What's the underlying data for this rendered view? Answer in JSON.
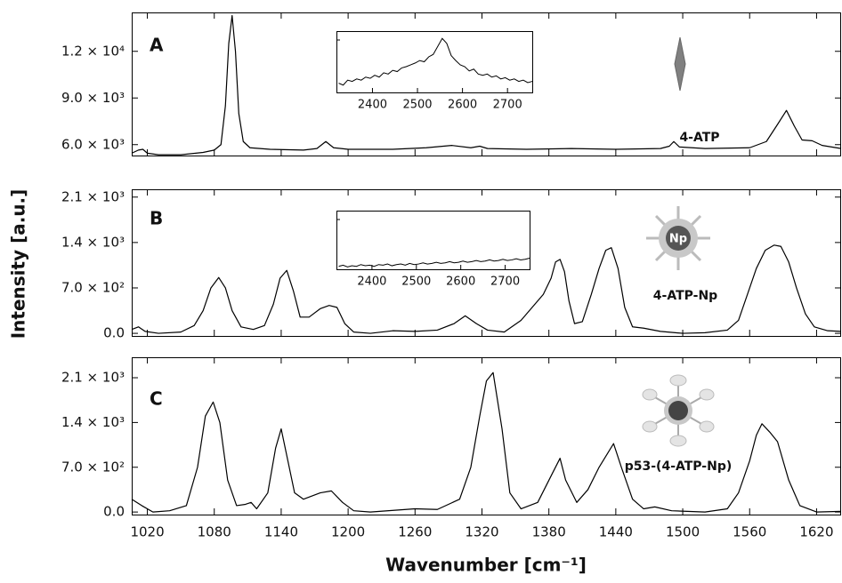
{
  "xlabel": "Wavenumber [cm⁻¹]",
  "ylabel": "Intensity [a.u.]",
  "chart_data": [
    {
      "type": "line",
      "label": "A",
      "annotation": "4-ATP",
      "color": "#000000",
      "x": [
        1006,
        1012,
        1016,
        1020,
        1030,
        1050,
        1070,
        1080,
        1086,
        1090,
        1093,
        1096,
        1099,
        1102,
        1106,
        1112,
        1130,
        1160,
        1172,
        1180,
        1187,
        1200,
        1240,
        1270,
        1293,
        1310,
        1318,
        1325,
        1360,
        1400,
        1440,
        1480,
        1488,
        1492,
        1497,
        1520,
        1560,
        1575,
        1585,
        1593,
        1600,
        1607,
        1616,
        1625,
        1642
      ],
      "values": [
        5450,
        5650,
        5700,
        5450,
        5350,
        5350,
        5500,
        5650,
        6000,
        8500,
        12500,
        14300,
        12000,
        8000,
        6200,
        5800,
        5700,
        5650,
        5750,
        6200,
        5800,
        5700,
        5700,
        5800,
        5950,
        5800,
        5900,
        5750,
        5700,
        5750,
        5700,
        5750,
        5900,
        6200,
        5850,
        5750,
        5800,
        6200,
        7300,
        8200,
        7200,
        6300,
        6250,
        5950,
        5750
      ],
      "xlim": [
        1006,
        1642
      ],
      "xticks": [
        1020,
        1080,
        1140,
        1200,
        1260,
        1320,
        1380,
        1440,
        1500,
        1560,
        1620
      ],
      "ylim": [
        5300,
        14500
      ],
      "yticks": [
        {
          "value": 6000,
          "label": "6.0 × 10³"
        },
        {
          "value": 9000,
          "label": "9.0 × 10³"
        },
        {
          "value": 12000,
          "label": "1.2 × 10⁴"
        }
      ],
      "inset": {
        "type": "line",
        "color": "#000000",
        "x": [
          2325,
          2335,
          2345,
          2355,
          2365,
          2375,
          2385,
          2395,
          2405,
          2415,
          2425,
          2435,
          2445,
          2455,
          2465,
          2475,
          2485,
          2495,
          2505,
          2515,
          2525,
          2535,
          2545,
          2555,
          2565,
          2575,
          2585,
          2595,
          2605,
          2615,
          2625,
          2635,
          2645,
          2655,
          2665,
          2675,
          2685,
          2695,
          2705,
          2715,
          2725,
          2735,
          2745,
          2755
        ],
        "values": [
          15,
          12,
          20,
          18,
          22,
          20,
          25,
          23,
          28,
          25,
          32,
          30,
          36,
          34,
          40,
          42,
          45,
          48,
          52,
          50,
          58,
          62,
          75,
          88,
          80,
          60,
          52,
          45,
          42,
          35,
          38,
          30,
          28,
          30,
          25,
          27,
          22,
          24,
          20,
          22,
          18,
          20,
          16,
          18
        ],
        "xlim": [
          2320,
          2755
        ],
        "xticks": [
          2400,
          2500,
          2600,
          2700
        ],
        "ylim": [
          0,
          100
        ]
      }
    },
    {
      "type": "line",
      "label": "B",
      "annotation": "4-ATP-Np",
      "icon_label": "Np",
      "color": "#000000",
      "x": [
        1006,
        1012,
        1018,
        1030,
        1050,
        1062,
        1070,
        1077,
        1084,
        1090,
        1096,
        1104,
        1115,
        1125,
        1133,
        1139,
        1145,
        1151,
        1157,
        1165,
        1175,
        1183,
        1190,
        1197,
        1205,
        1220,
        1240,
        1260,
        1280,
        1295,
        1305,
        1315,
        1325,
        1340,
        1355,
        1365,
        1375,
        1382,
        1386,
        1390,
        1394,
        1398,
        1403,
        1410,
        1418,
        1425,
        1431,
        1436,
        1442,
        1448,
        1455,
        1465,
        1480,
        1500,
        1520,
        1540,
        1550,
        1558,
        1566,
        1574,
        1582,
        1588,
        1595,
        1602,
        1610,
        1618,
        1630,
        1642
      ],
      "values": [
        60,
        100,
        30,
        0,
        20,
        120,
        350,
        700,
        860,
        700,
        350,
        100,
        60,
        120,
        450,
        850,
        970,
        650,
        250,
        250,
        380,
        430,
        400,
        150,
        20,
        0,
        40,
        30,
        50,
        150,
        270,
        150,
        50,
        20,
        200,
        400,
        600,
        850,
        1100,
        1140,
        950,
        500,
        150,
        180,
        600,
        1000,
        1280,
        1320,
        1000,
        400,
        100,
        80,
        30,
        0,
        10,
        50,
        200,
        600,
        1000,
        1280,
        1360,
        1340,
        1100,
        700,
        300,
        100,
        40,
        30
      ],
      "xlim": [
        1006,
        1642
      ],
      "xticks": [
        1020,
        1080,
        1140,
        1200,
        1260,
        1320,
        1380,
        1440,
        1500,
        1560,
        1620
      ],
      "ylim": [
        -40,
        2220
      ],
      "yticks": [
        {
          "value": 0,
          "label": "0.0"
        },
        {
          "value": 700,
          "label": "7.0 × 10²"
        },
        {
          "value": 1400,
          "label": "1.4 × 10³"
        },
        {
          "value": 2100,
          "label": "2.1 × 10³"
        }
      ],
      "inset": {
        "type": "line",
        "color": "#000000",
        "x": [
          2325,
          2335,
          2345,
          2355,
          2365,
          2375,
          2385,
          2395,
          2405,
          2415,
          2425,
          2435,
          2445,
          2455,
          2465,
          2475,
          2485,
          2495,
          2505,
          2515,
          2525,
          2535,
          2545,
          2555,
          2565,
          2575,
          2585,
          2595,
          2605,
          2615,
          2625,
          2635,
          2645,
          2655,
          2665,
          2675,
          2685,
          2695,
          2705,
          2715,
          2725,
          2735,
          2745,
          2755
        ],
        "values": [
          5,
          7,
          4,
          6,
          5,
          8,
          6,
          7,
          5,
          8,
          7,
          9,
          6,
          8,
          9,
          7,
          10,
          8,
          9,
          11,
          9,
          10,
          12,
          10,
          11,
          13,
          11,
          12,
          14,
          12,
          13,
          15,
          13,
          14,
          16,
          14,
          15,
          17,
          15,
          16,
          18,
          16,
          17,
          19
        ],
        "xlim": [
          2320,
          2755
        ],
        "xticks": [
          2400,
          2500,
          2600,
          2700
        ],
        "ylim": [
          0,
          100
        ]
      }
    },
    {
      "type": "line",
      "label": "C",
      "annotation": "p53-(4-ATP-Np)",
      "color": "#000000",
      "x": [
        1006,
        1015,
        1025,
        1040,
        1055,
        1065,
        1072,
        1079,
        1085,
        1092,
        1100,
        1108,
        1113,
        1118,
        1128,
        1135,
        1140,
        1146,
        1152,
        1160,
        1175,
        1185,
        1195,
        1205,
        1220,
        1260,
        1280,
        1300,
        1310,
        1318,
        1324,
        1330,
        1338,
        1345,
        1355,
        1370,
        1383,
        1390,
        1395,
        1405,
        1415,
        1425,
        1438,
        1445,
        1455,
        1465,
        1475,
        1490,
        1520,
        1540,
        1550,
        1560,
        1566,
        1571,
        1578,
        1585,
        1595,
        1605,
        1620,
        1642
      ],
      "values": [
        200,
        100,
        0,
        20,
        100,
        700,
        1500,
        1720,
        1400,
        500,
        100,
        120,
        150,
        50,
        300,
        1000,
        1300,
        800,
        300,
        200,
        300,
        330,
        150,
        20,
        0,
        50,
        40,
        200,
        700,
        1500,
        2050,
        2180,
        1300,
        300,
        50,
        150,
        600,
        840,
        500,
        150,
        350,
        700,
        1070,
        700,
        200,
        50,
        80,
        20,
        0,
        50,
        300,
        800,
        1200,
        1380,
        1250,
        1100,
        500,
        100,
        0,
        10
      ],
      "xlim": [
        1006,
        1642
      ],
      "xticks": [
        1020,
        1080,
        1140,
        1200,
        1260,
        1320,
        1380,
        1440,
        1500,
        1560,
        1620
      ],
      "ylim": [
        -40,
        2420
      ],
      "yticks": [
        {
          "value": 0,
          "label": "0.0"
        },
        {
          "value": 700,
          "label": "7.0 × 10²"
        },
        {
          "value": 1400,
          "label": "1.4 × 10³"
        },
        {
          "value": 2100,
          "label": "2.1 × 10³"
        }
      ]
    }
  ]
}
